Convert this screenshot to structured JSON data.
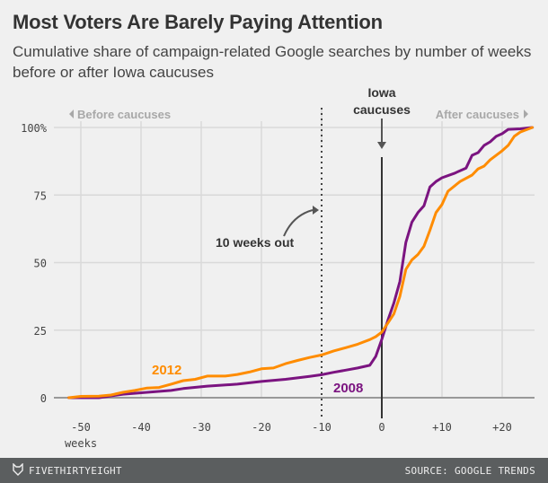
{
  "header": {
    "title": "Most Voters Are Barely Paying Attention",
    "subtitle": "Cumulative share of campaign-related Google searches by number of weeks before or after Iowa caucuses"
  },
  "footer": {
    "brand": "FIVETHIRTYEIGHT",
    "source": "SOURCE: GOOGLE TRENDS"
  },
  "chart_data": {
    "type": "line",
    "title": "Most Voters Are Barely Paying Attention",
    "xlabel": "weeks",
    "ylabel": "",
    "xlim": [
      -52,
      25
    ],
    "ylim": [
      0,
      100
    ],
    "grid": true,
    "x_ticks": [
      -50,
      -40,
      -30,
      -20,
      -10,
      0,
      10,
      20
    ],
    "x_tick_labels": [
      "-50",
      "-40",
      "-30",
      "-20",
      "-10",
      "0",
      "+10",
      "+20"
    ],
    "y_ticks": [
      0,
      25,
      50,
      75,
      100
    ],
    "y_tick_labels": [
      "0",
      "25",
      "50",
      "75",
      "100%"
    ],
    "colors": {
      "2012": "#ff8c00",
      "2008": "#7b1480",
      "axis": "#999999",
      "grid": "#d9d9d9",
      "marker": "#444444",
      "side_label": "#a8a8a8"
    },
    "series": [
      {
        "name": "2012",
        "x": [
          -52,
          -50,
          -47,
          -45,
          -43,
          -41,
          -39,
          -37,
          -35,
          -33,
          -31,
          -29,
          -26,
          -24,
          -22,
          -20,
          -18,
          -16,
          -14,
          -12,
          -10,
          -8,
          -6,
          -4,
          -2,
          -1,
          0,
          1,
          2,
          3,
          4,
          5,
          6,
          7,
          8,
          9,
          10,
          11,
          13,
          15,
          16,
          17,
          18,
          20,
          21,
          22,
          23,
          25
        ],
        "values": [
          0,
          0.5,
          0.6,
          1,
          2,
          2.7,
          3.6,
          3.8,
          5,
          6.3,
          6.8,
          8,
          8,
          8.6,
          9.5,
          10.7,
          11,
          12.6,
          13.8,
          14.9,
          15.8,
          17.3,
          18.5,
          19.8,
          21.5,
          22.6,
          24.3,
          27.6,
          31,
          37.5,
          47.5,
          51,
          53,
          56,
          62,
          68.5,
          71.5,
          76.4,
          80,
          82.4,
          84.7,
          85.7,
          88,
          91.4,
          93.4,
          96.7,
          98.3,
          100
        ]
      },
      {
        "name": "2008",
        "x": [
          -52,
          -47,
          -43,
          -39,
          -35,
          -33,
          -29,
          -24,
          -20,
          -16,
          -12,
          -10,
          -8,
          -6,
          -4,
          -2,
          -1,
          0,
          1,
          2,
          3,
          4,
          5,
          6,
          7,
          8,
          9,
          10,
          12,
          14,
          15,
          16,
          17,
          18,
          19,
          20,
          21,
          23,
          25
        ],
        "values": [
          0,
          0,
          1.3,
          2,
          2.7,
          3.4,
          4.3,
          5,
          6,
          6.8,
          7.9,
          8.5,
          9.4,
          10.2,
          11,
          12,
          15.3,
          21.6,
          28.6,
          35,
          43,
          57.5,
          65,
          68.5,
          71,
          78,
          80,
          81.4,
          83,
          85,
          89.7,
          90.7,
          93.4,
          94.7,
          96.7,
          97.7,
          99.3,
          99.5,
          100
        ]
      }
    ],
    "annotations": [
      {
        "text": "Iowa caucuses",
        "x": 0,
        "type": "vertical-line-with-arrow"
      },
      {
        "text": "10 weeks out",
        "x": -10,
        "type": "dotted-vertical-line"
      },
      {
        "text": "Before caucuses",
        "position": "top-left"
      },
      {
        "text": "After caucuses",
        "position": "top-right"
      },
      {
        "text": "2012",
        "series": "2012"
      },
      {
        "text": "2008",
        "series": "2008"
      }
    ],
    "labels": {
      "iowa_line1": "Iowa",
      "iowa_line2": "caucuses",
      "ten_weeks": "10 weeks out",
      "before": "Before caucuses",
      "after": "After caucuses",
      "s2012": "2012",
      "s2008": "2008",
      "weeks": "weeks"
    }
  }
}
